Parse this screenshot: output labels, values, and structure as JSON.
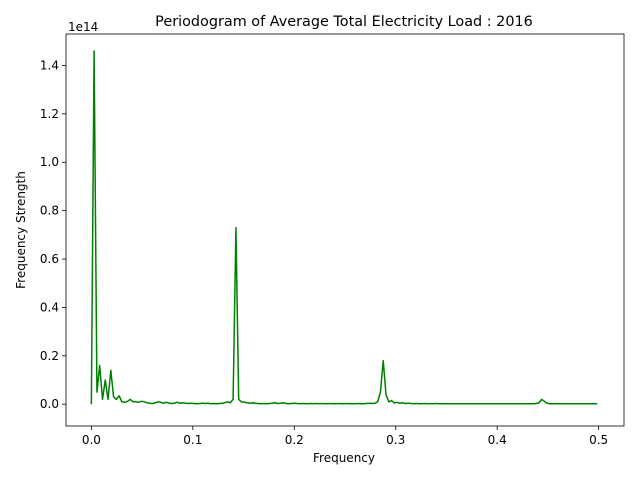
{
  "chart_data": {
    "type": "line",
    "title": "Periodogram of Average Total Electricity Load : 2016",
    "xlabel": "Frequency",
    "ylabel": "Frequency Strength",
    "y_offset_label": "1e14",
    "y_scale": 100000000000000.0,
    "xlim": [
      -0.025,
      0.525
    ],
    "ylim": [
      -0.09,
      1.53
    ],
    "xticks": [
      0.0,
      0.1,
      0.2,
      0.3,
      0.4,
      0.5
    ],
    "xtick_labels": [
      "0.0",
      "0.1",
      "0.2",
      "0.3",
      "0.4",
      "0.5"
    ],
    "yticks": [
      0.0,
      0.2,
      0.4,
      0.6,
      0.8,
      1.0,
      1.2,
      1.4
    ],
    "ytick_labels": [
      "0.0",
      "0.2",
      "0.4",
      "0.6",
      "0.8",
      "1.0",
      "1.2",
      "1.4"
    ],
    "grid": false,
    "color": "#008000",
    "series": [
      {
        "x": [
          0.0,
          0.0027,
          0.0055,
          0.0082,
          0.011,
          0.0137,
          0.0164,
          0.0192,
          0.0219,
          0.0247,
          0.0274,
          0.0301,
          0.0329,
          0.0356,
          0.0384,
          0.0411,
          0.0438,
          0.0466,
          0.0493,
          0.0521,
          0.0548,
          0.0575,
          0.0603,
          0.063,
          0.0658,
          0.0685,
          0.0712,
          0.074,
          0.0767,
          0.0795,
          0.0822,
          0.0849,
          0.0877,
          0.0904,
          0.0932,
          0.0959,
          0.0986,
          0.1014,
          0.1041,
          0.1068,
          0.1096,
          0.1123,
          0.1151,
          0.1178,
          0.1205,
          0.1233,
          0.126,
          0.1288,
          0.1315,
          0.1342,
          0.137,
          0.1397,
          0.1425,
          0.1452,
          0.1479,
          0.1507,
          0.1534,
          0.1562,
          0.1589,
          0.1616,
          0.1644,
          0.1671,
          0.1699,
          0.1726,
          0.1753,
          0.1781,
          0.1808,
          0.1836,
          0.1863,
          0.189,
          0.1918,
          0.1945,
          0.1973,
          0.2,
          0.2027,
          0.2055,
          0.2082,
          0.211,
          0.2137,
          0.2164,
          0.2192,
          0.2219,
          0.2247,
          0.2274,
          0.2301,
          0.2329,
          0.2356,
          0.2384,
          0.2411,
          0.2438,
          0.2466,
          0.2493,
          0.2521,
          0.2548,
          0.2575,
          0.2603,
          0.263,
          0.2658,
          0.2685,
          0.2712,
          0.274,
          0.2767,
          0.2795,
          0.2822,
          0.2849,
          0.2877,
          0.2904,
          0.2932,
          0.2959,
          0.2986,
          0.3014,
          0.3041,
          0.3068,
          0.3096,
          0.3123,
          0.3151,
          0.3178,
          0.3205,
          0.3233,
          0.326,
          0.3288,
          0.3315,
          0.3342,
          0.337,
          0.3397,
          0.3425,
          0.3452,
          0.3479,
          0.3507,
          0.3534,
          0.3562,
          0.3589,
          0.3616,
          0.3644,
          0.3671,
          0.3699,
          0.3726,
          0.3753,
          0.3781,
          0.3808,
          0.3836,
          0.3863,
          0.389,
          0.3918,
          0.3945,
          0.3973,
          0.4,
          0.4027,
          0.4055,
          0.4082,
          0.411,
          0.4137,
          0.4164,
          0.4192,
          0.4219,
          0.4247,
          0.4274,
          0.4301,
          0.4329,
          0.4356,
          0.4384,
          0.4411,
          0.4438,
          0.4466,
          0.4493,
          0.4521,
          0.4548,
          0.4575,
          0.4603,
          0.463,
          0.4658,
          0.4685,
          0.4712,
          0.474,
          0.4767,
          0.4795,
          0.4822,
          0.4849,
          0.4877,
          0.4904,
          0.4932,
          0.4959,
          0.4986
        ],
        "values": [
          0.0,
          1.46,
          0.05,
          0.16,
          0.02,
          0.1,
          0.02,
          0.14,
          0.03,
          0.02,
          0.035,
          0.01,
          0.008,
          0.012,
          0.02,
          0.01,
          0.01,
          0.008,
          0.012,
          0.01,
          0.006,
          0.004,
          0.003,
          0.006,
          0.01,
          0.008,
          0.004,
          0.008,
          0.004,
          0.003,
          0.005,
          0.008,
          0.004,
          0.006,
          0.004,
          0.003,
          0.004,
          0.003,
          0.002,
          0.003,
          0.004,
          0.003,
          0.004,
          0.002,
          0.003,
          0.002,
          0.003,
          0.004,
          0.006,
          0.01,
          0.006,
          0.02,
          0.73,
          0.02,
          0.01,
          0.008,
          0.006,
          0.004,
          0.006,
          0.004,
          0.003,
          0.002,
          0.003,
          0.002,
          0.003,
          0.004,
          0.006,
          0.003,
          0.004,
          0.006,
          0.003,
          0.002,
          0.003,
          0.004,
          0.003,
          0.002,
          0.003,
          0.002,
          0.002,
          0.003,
          0.002,
          0.003,
          0.002,
          0.003,
          0.002,
          0.002,
          0.003,
          0.002,
          0.002,
          0.003,
          0.002,
          0.002,
          0.003,
          0.002,
          0.002,
          0.002,
          0.003,
          0.002,
          0.002,
          0.003,
          0.004,
          0.003,
          0.004,
          0.01,
          0.05,
          0.18,
          0.04,
          0.01,
          0.015,
          0.005,
          0.008,
          0.004,
          0.006,
          0.003,
          0.004,
          0.003,
          0.002,
          0.003,
          0.002,
          0.002,
          0.003,
          0.002,
          0.002,
          0.002,
          0.003,
          0.002,
          0.002,
          0.002,
          0.002,
          0.002,
          0.002,
          0.002,
          0.002,
          0.002,
          0.002,
          0.002,
          0.002,
          0.002,
          0.002,
          0.002,
          0.002,
          0.002,
          0.002,
          0.002,
          0.002,
          0.002,
          0.002,
          0.002,
          0.002,
          0.002,
          0.002,
          0.002,
          0.002,
          0.002,
          0.002,
          0.002,
          0.002,
          0.002,
          0.002,
          0.002,
          0.003,
          0.005,
          0.02,
          0.012,
          0.004,
          0.002,
          0.002,
          0.002,
          0.002,
          0.002,
          0.002,
          0.002,
          0.002,
          0.002,
          0.002,
          0.002,
          0.002,
          0.002,
          0.002,
          0.002,
          0.002,
          0.002,
          0.002
        ]
      }
    ]
  }
}
